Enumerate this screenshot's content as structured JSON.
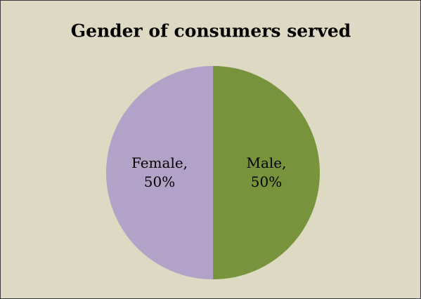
{
  "chart_data": {
    "type": "pie",
    "title": "Gender of consumers served",
    "categories": [
      "Male,",
      "Female,"
    ],
    "values": [
      50,
      50
    ],
    "value_labels": [
      "50%",
      "50%"
    ],
    "colors": [
      "#77933c",
      "#b3a2c7"
    ]
  }
}
